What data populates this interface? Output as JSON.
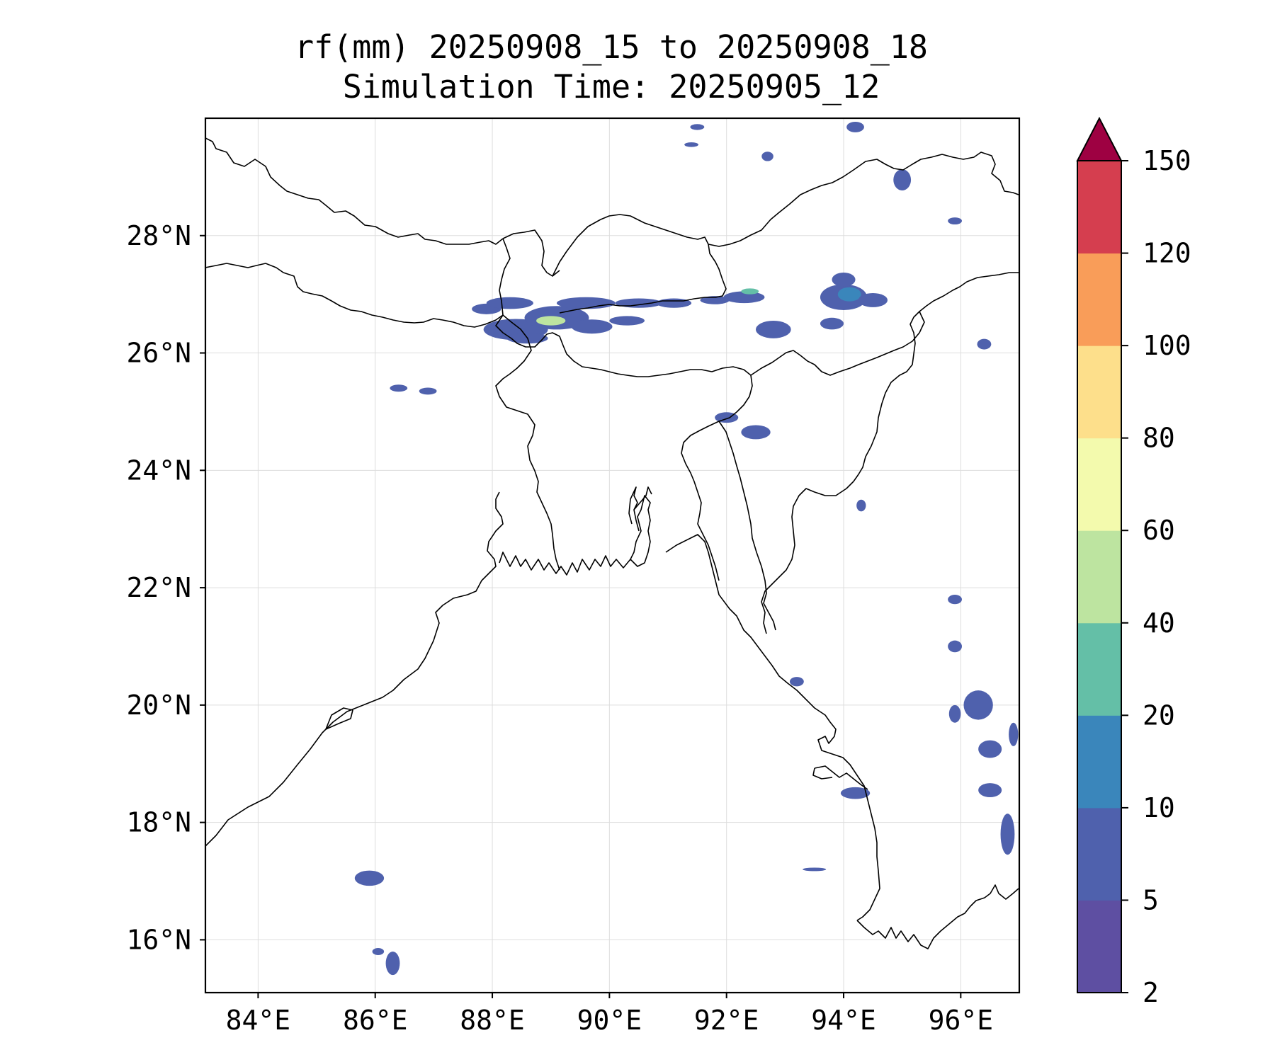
{
  "title": {
    "line1": "rf(mm) 20250908_15 to 20250908_18",
    "line2": "Simulation Time: 20250905_12"
  },
  "map": {
    "lon_range": [
      83.1,
      97.0
    ],
    "lat_range": [
      15.1,
      30.0
    ],
    "lon_ticks": [
      {
        "value": 84,
        "label": "84°E"
      },
      {
        "value": 86,
        "label": "86°E"
      },
      {
        "value": 88,
        "label": "88°E"
      },
      {
        "value": 90,
        "label": "90°E"
      },
      {
        "value": 92,
        "label": "92°E"
      },
      {
        "value": 94,
        "label": "94°E"
      },
      {
        "value": 96,
        "label": "96°E"
      }
    ],
    "lat_ticks": [
      {
        "value": 16,
        "label": "16°N"
      },
      {
        "value": 18,
        "label": "18°N"
      },
      {
        "value": 20,
        "label": "20°N"
      },
      {
        "value": 22,
        "label": "22°N"
      },
      {
        "value": 24,
        "label": "24°N"
      },
      {
        "value": 26,
        "label": "26°N"
      },
      {
        "value": 28,
        "label": "28°N"
      }
    ],
    "gridlines": true,
    "rain_cells": [
      {
        "lon": 87.9,
        "lat": 26.75,
        "rx": 0.25,
        "ry": 0.09,
        "level": 1
      },
      {
        "lon": 88.4,
        "lat": 26.4,
        "rx": 0.55,
        "ry": 0.18,
        "level": 1
      },
      {
        "lon": 89.1,
        "lat": 26.6,
        "rx": 0.55,
        "ry": 0.2,
        "level": 1
      },
      {
        "lon": 89.0,
        "lat": 26.55,
        "rx": 0.25,
        "ry": 0.08,
        "level": 4
      },
      {
        "lon": 88.6,
        "lat": 26.25,
        "rx": 0.35,
        "ry": 0.09,
        "level": 1
      },
      {
        "lon": 89.7,
        "lat": 26.45,
        "rx": 0.35,
        "ry": 0.12,
        "level": 1
      },
      {
        "lon": 88.3,
        "lat": 26.85,
        "rx": 0.4,
        "ry": 0.1,
        "level": 1
      },
      {
        "lon": 89.6,
        "lat": 26.85,
        "rx": 0.5,
        "ry": 0.1,
        "level": 1
      },
      {
        "lon": 90.5,
        "lat": 26.85,
        "rx": 0.4,
        "ry": 0.08,
        "level": 1
      },
      {
        "lon": 91.1,
        "lat": 26.85,
        "rx": 0.3,
        "ry": 0.08,
        "level": 1
      },
      {
        "lon": 90.3,
        "lat": 26.55,
        "rx": 0.3,
        "ry": 0.08,
        "level": 1
      },
      {
        "lon": 92.3,
        "lat": 26.95,
        "rx": 0.35,
        "ry": 0.1,
        "level": 1
      },
      {
        "lon": 92.4,
        "lat": 27.05,
        "rx": 0.15,
        "ry": 0.05,
        "level": 3
      },
      {
        "lon": 91.8,
        "lat": 26.9,
        "rx": 0.25,
        "ry": 0.07,
        "level": 1
      },
      {
        "lon": 92.8,
        "lat": 26.4,
        "rx": 0.3,
        "ry": 0.15,
        "level": 1
      },
      {
        "lon": 94.0,
        "lat": 26.95,
        "rx": 0.4,
        "ry": 0.22,
        "level": 1
      },
      {
        "lon": 94.1,
        "lat": 27.0,
        "rx": 0.2,
        "ry": 0.12,
        "level": 2
      },
      {
        "lon": 94.5,
        "lat": 26.9,
        "rx": 0.25,
        "ry": 0.12,
        "level": 1
      },
      {
        "lon": 94.0,
        "lat": 27.25,
        "rx": 0.2,
        "ry": 0.12,
        "level": 1
      },
      {
        "lon": 93.8,
        "lat": 26.5,
        "rx": 0.2,
        "ry": 0.1,
        "level": 1
      },
      {
        "lon": 95.0,
        "lat": 28.95,
        "rx": 0.15,
        "ry": 0.18,
        "level": 1
      },
      {
        "lon": 94.2,
        "lat": 29.85,
        "rx": 0.15,
        "ry": 0.09,
        "level": 1
      },
      {
        "lon": 92.7,
        "lat": 29.35,
        "rx": 0.1,
        "ry": 0.08,
        "level": 1
      },
      {
        "lon": 91.5,
        "lat": 29.85,
        "rx": 0.12,
        "ry": 0.05,
        "level": 1
      },
      {
        "lon": 91.4,
        "lat": 29.55,
        "rx": 0.12,
        "ry": 0.04,
        "level": 1
      },
      {
        "lon": 95.9,
        "lat": 28.25,
        "rx": 0.12,
        "ry": 0.06,
        "level": 1
      },
      {
        "lon": 96.4,
        "lat": 26.15,
        "rx": 0.12,
        "ry": 0.09,
        "level": 1
      },
      {
        "lon": 92.0,
        "lat": 24.9,
        "rx": 0.2,
        "ry": 0.09,
        "level": 1
      },
      {
        "lon": 92.5,
        "lat": 24.65,
        "rx": 0.25,
        "ry": 0.12,
        "level": 1
      },
      {
        "lon": 94.3,
        "lat": 23.4,
        "rx": 0.08,
        "ry": 0.1,
        "level": 1
      },
      {
        "lon": 86.4,
        "lat": 25.4,
        "rx": 0.15,
        "ry": 0.06,
        "level": 1
      },
      {
        "lon": 86.9,
        "lat": 25.35,
        "rx": 0.15,
        "ry": 0.06,
        "level": 1
      },
      {
        "lon": 85.9,
        "lat": 17.05,
        "rx": 0.25,
        "ry": 0.13,
        "level": 1
      },
      {
        "lon": 86.3,
        "lat": 15.6,
        "rx": 0.12,
        "ry": 0.2,
        "level": 1
      },
      {
        "lon": 86.05,
        "lat": 15.8,
        "rx": 0.1,
        "ry": 0.06,
        "level": 1
      },
      {
        "lon": 95.9,
        "lat": 21.0,
        "rx": 0.12,
        "ry": 0.1,
        "level": 1
      },
      {
        "lon": 95.9,
        "lat": 21.8,
        "rx": 0.12,
        "ry": 0.08,
        "level": 1
      },
      {
        "lon": 96.3,
        "lat": 20.0,
        "rx": 0.25,
        "ry": 0.25,
        "level": 1
      },
      {
        "lon": 96.5,
        "lat": 19.25,
        "rx": 0.2,
        "ry": 0.15,
        "level": 1
      },
      {
        "lon": 96.5,
        "lat": 18.55,
        "rx": 0.2,
        "ry": 0.12,
        "level": 1
      },
      {
        "lon": 96.8,
        "lat": 17.8,
        "rx": 0.12,
        "ry": 0.35,
        "level": 1
      },
      {
        "lon": 95.9,
        "lat": 19.85,
        "rx": 0.1,
        "ry": 0.15,
        "level": 1
      },
      {
        "lon": 96.9,
        "lat": 19.5,
        "rx": 0.08,
        "ry": 0.2,
        "level": 1
      },
      {
        "lon": 94.2,
        "lat": 18.5,
        "rx": 0.25,
        "ry": 0.1,
        "level": 1
      },
      {
        "lon": 93.2,
        "lat": 20.4,
        "rx": 0.12,
        "ry": 0.08,
        "level": 1
      },
      {
        "lon": 93.5,
        "lat": 17.2,
        "rx": 0.2,
        "ry": 0.03,
        "level": 1
      }
    ]
  },
  "colorbar": {
    "extend": "max",
    "levels": [
      {
        "value": 2,
        "label": "2",
        "color": "#5e4fa2"
      },
      {
        "value": 5,
        "label": "5",
        "color": "#4f61ad"
      },
      {
        "value": 10,
        "label": "10",
        "color": "#3a86bb"
      },
      {
        "value": 20,
        "label": "20",
        "color": "#64bfa7"
      },
      {
        "value": 40,
        "label": "40",
        "color": "#bde4a0"
      },
      {
        "value": 60,
        "label": "60",
        "color": "#f3faad"
      },
      {
        "value": 80,
        "label": "80",
        "color": "#fddf8b"
      },
      {
        "value": 100,
        "label": "100",
        "color": "#f99d59"
      },
      {
        "value": 120,
        "label": "120",
        "color": "#d53e4f"
      },
      {
        "value": 150,
        "label": "150",
        "color": "#9e0142"
      }
    ]
  }
}
